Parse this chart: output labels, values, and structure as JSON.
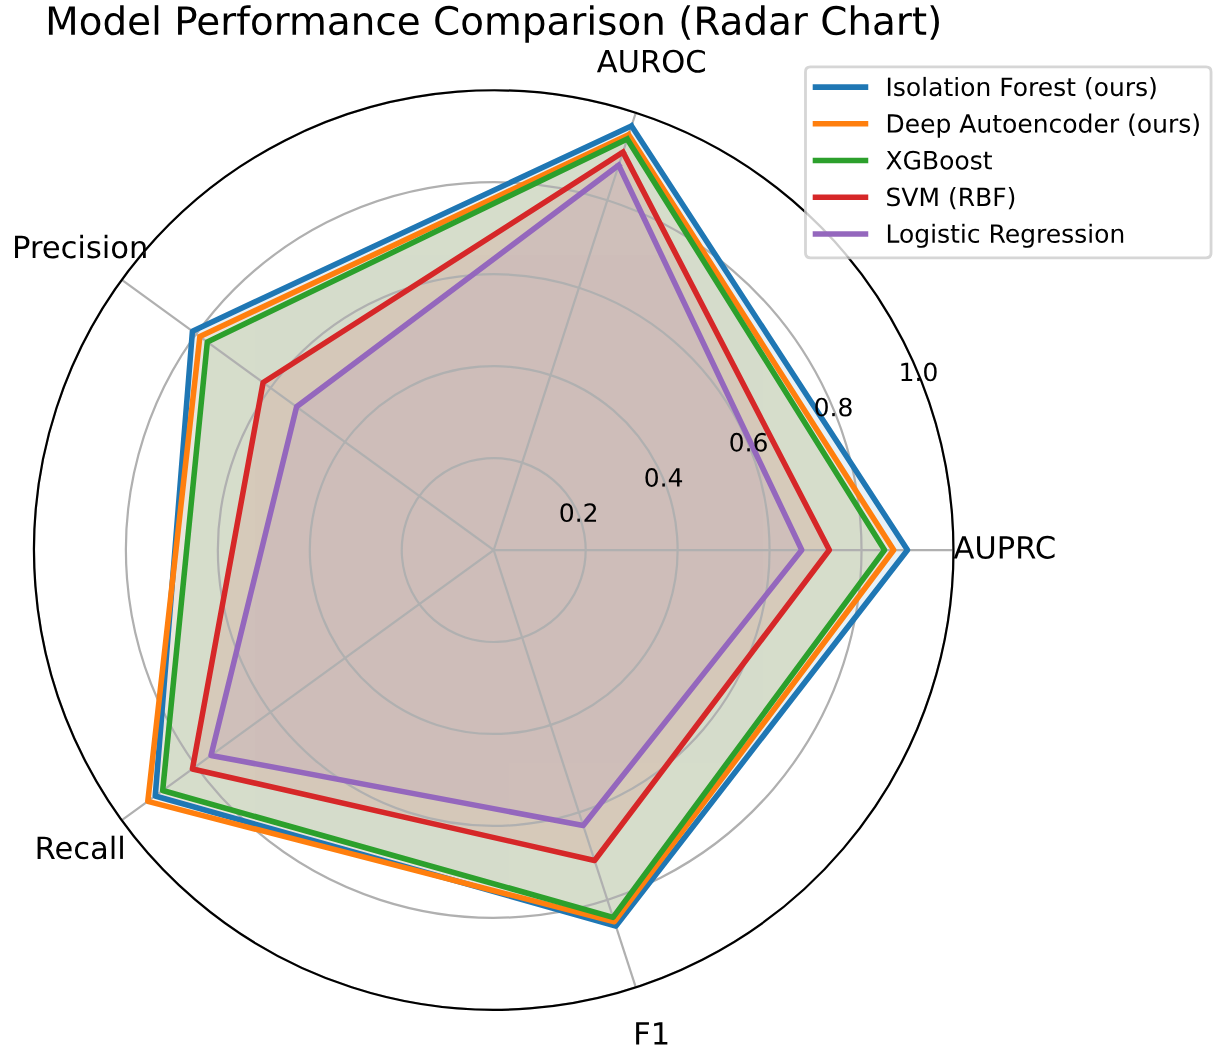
{
  "chart_data": {
    "type": "radar",
    "title": "Model Performance Comparison (Radar Chart)",
    "categories": [
      "AUROC",
      "AUPRC",
      "F1",
      "Recall",
      "Precision"
    ],
    "series": [
      {
        "name": "Isolation Forest (ours)",
        "color": "#1f77b4",
        "values": [
          0.97,
          0.9,
          0.86,
          0.91,
          0.81
        ]
      },
      {
        "name": "Deep Autoencoder (ours)",
        "color": "#ff7f0e",
        "values": [
          0.95,
          0.87,
          0.85,
          0.93,
          0.79
        ]
      },
      {
        "name": "XGBoost",
        "color": "#2ca02c",
        "values": [
          0.94,
          0.85,
          0.84,
          0.89,
          0.77
        ]
      },
      {
        "name": "SVM (RBF)",
        "color": "#d62728",
        "values": [
          0.91,
          0.73,
          0.71,
          0.81,
          0.62
        ]
      },
      {
        "name": "Logistic Regression",
        "color": "#9467bd",
        "values": [
          0.88,
          0.67,
          0.63,
          0.76,
          0.53
        ]
      }
    ],
    "ylim": [
      0,
      1.0
    ],
    "yticks": [
      0.2,
      0.4,
      0.6,
      0.8,
      {
        "value": 1,
        "label": "1.0"
      }
    ],
    "grid": true,
    "legend": "top right"
  }
}
